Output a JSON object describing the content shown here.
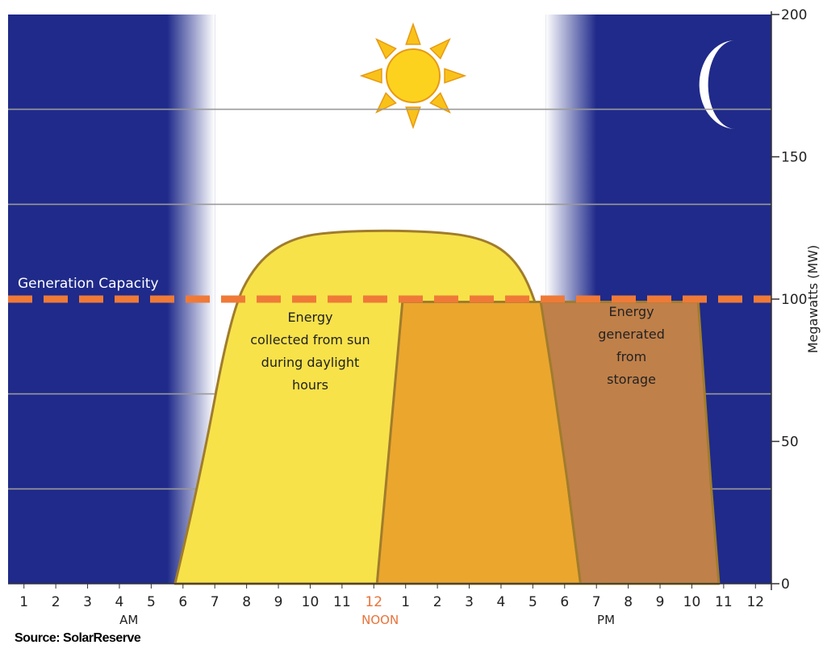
{
  "chart_data": {
    "type": "area",
    "ylabel": "Megawatts (MW)",
    "ylim": [
      0,
      200
    ],
    "yticks": [
      0,
      50,
      100,
      150,
      200
    ],
    "x_hours": [
      {
        "label": "1",
        "group": "AM"
      },
      {
        "label": "2",
        "group": "AM"
      },
      {
        "label": "3",
        "group": "AM"
      },
      {
        "label": "4",
        "group": "AM"
      },
      {
        "label": "5",
        "group": "AM"
      },
      {
        "label": "6",
        "group": "AM"
      },
      {
        "label": "7",
        "group": "AM"
      },
      {
        "label": "8",
        "group": "AM"
      },
      {
        "label": "9",
        "group": "AM"
      },
      {
        "label": "10",
        "group": "AM"
      },
      {
        "label": "11",
        "group": "AM"
      },
      {
        "label": "12",
        "group": "NOON"
      },
      {
        "label": "1",
        "group": "PM"
      },
      {
        "label": "2",
        "group": "PM"
      },
      {
        "label": "3",
        "group": "PM"
      },
      {
        "label": "4",
        "group": "PM"
      },
      {
        "label": "5",
        "group": "PM"
      },
      {
        "label": "6",
        "group": "PM"
      },
      {
        "label": "7",
        "group": "PM"
      },
      {
        "label": "8",
        "group": "PM"
      },
      {
        "label": "9",
        "group": "PM"
      },
      {
        "label": "10",
        "group": "PM"
      },
      {
        "label": "11",
        "group": "PM"
      },
      {
        "label": "12",
        "group": "PM"
      }
    ],
    "x_group_labels": [
      {
        "text": "AM",
        "hour": 4.3
      },
      {
        "text": "NOON",
        "hour": 12.2
      },
      {
        "text": "PM",
        "hour": 19.3
      }
    ],
    "series": [
      {
        "name": "Energy collected from sun during daylight hours",
        "color": "#f7e24a",
        "points": [
          [
            5.75,
            0
          ],
          [
            6.5,
            35
          ],
          [
            7.5,
            95
          ],
          [
            8.3,
            113
          ],
          [
            9.5,
            122
          ],
          [
            11.2,
            124
          ],
          [
            13.5,
            124
          ],
          [
            15.3,
            122
          ],
          [
            16.4,
            115
          ],
          [
            17.1,
            100
          ],
          [
            17.6,
            74
          ],
          [
            18.1,
            35
          ],
          [
            18.5,
            0
          ]
        ]
      },
      {
        "name": "",
        "color": "#eba62e",
        "points": [
          [
            12.1,
            0
          ],
          [
            12.9,
            99
          ],
          [
            18.0,
            99
          ],
          [
            18.1,
            35
          ],
          [
            18.5,
            0
          ]
        ]
      },
      {
        "name": "Energy generated from storage",
        "color": "#c0804a",
        "points": [
          [
            17.25,
            99
          ],
          [
            22.2,
            99
          ],
          [
            22.6,
            35
          ],
          [
            22.85,
            0
          ],
          [
            18.5,
            0
          ],
          [
            18.1,
            35
          ],
          [
            17.6,
            74
          ]
        ]
      }
    ],
    "generation_capacity": {
      "label": "Generation Capacity",
      "value": 100,
      "color": "#ef7a38"
    },
    "annotations": [
      {
        "lines": [
          "Energy",
          "collected from sun",
          "during daylight",
          "hours"
        ],
        "hour": 10.0,
        "y": 92
      },
      {
        "lines": [
          "Energy",
          "generated",
          "from",
          "storage"
        ],
        "hour": 20.1,
        "y": 94
      }
    ],
    "night_color": "#1f2a8a",
    "day_color": "#ffffff"
  },
  "source": "Source: SolarReserve"
}
